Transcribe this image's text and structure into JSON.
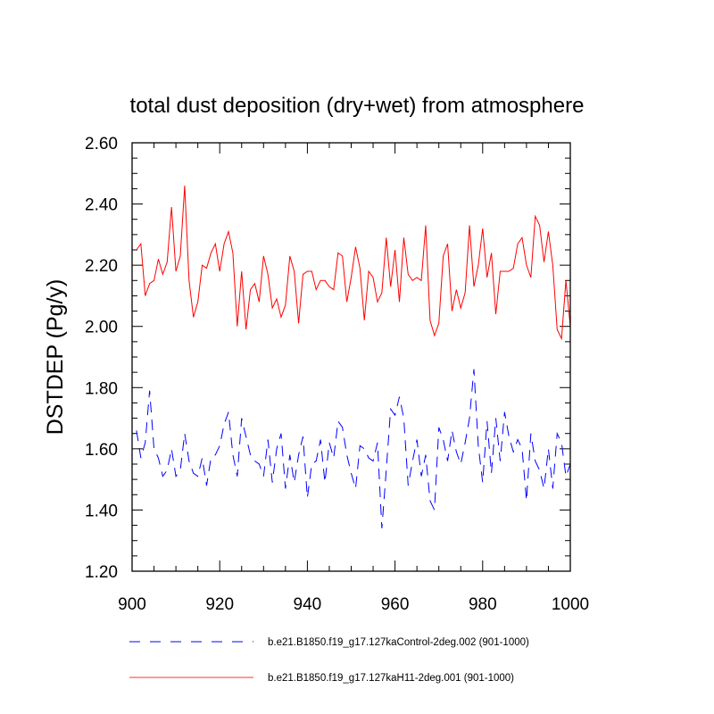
{
  "chart_data": {
    "type": "line",
    "title": "total dust deposition (dry+wet) from atmosphere",
    "xlabel": "",
    "ylabel": "DSTDEP  (Pg/y)",
    "xlim": [
      900,
      1000
    ],
    "ylim": [
      1.2,
      2.6
    ],
    "xticks": [
      900,
      920,
      940,
      960,
      980,
      1000
    ],
    "xtick_labels": [
      "900",
      "920",
      "940",
      "960",
      "980",
      "1000"
    ],
    "yticks": [
      1.2,
      1.4,
      1.6,
      1.8,
      2.0,
      2.2,
      2.4,
      2.6
    ],
    "ytick_labels": [
      "1.20",
      "1.40",
      "1.60",
      "1.80",
      "2.00",
      "2.20",
      "2.40",
      "2.60"
    ],
    "x": [
      901,
      902,
      903,
      904,
      905,
      906,
      907,
      908,
      909,
      910,
      911,
      912,
      913,
      914,
      915,
      916,
      917,
      918,
      919,
      920,
      921,
      922,
      923,
      924,
      925,
      926,
      927,
      928,
      929,
      930,
      931,
      932,
      933,
      934,
      935,
      936,
      937,
      938,
      939,
      940,
      941,
      942,
      943,
      944,
      945,
      946,
      947,
      948,
      949,
      950,
      951,
      952,
      953,
      954,
      955,
      956,
      957,
      958,
      959,
      960,
      961,
      962,
      963,
      964,
      965,
      966,
      967,
      968,
      969,
      970,
      971,
      972,
      973,
      974,
      975,
      976,
      977,
      978,
      979,
      980,
      981,
      982,
      983,
      984,
      985,
      986,
      987,
      988,
      989,
      990,
      991,
      992,
      993,
      994,
      995,
      996,
      997,
      998,
      999,
      1000
    ],
    "series": [
      {
        "name": "b.e21.B1850.f19_g17.127kaControl-2deg.002 (901-1000)",
        "color": "#0000ff",
        "style": "dashed",
        "values": [
          1.66,
          1.57,
          1.62,
          1.79,
          1.6,
          1.57,
          1.51,
          1.53,
          1.6,
          1.51,
          1.53,
          1.65,
          1.56,
          1.52,
          1.51,
          1.57,
          1.48,
          1.57,
          1.58,
          1.61,
          1.68,
          1.72,
          1.58,
          1.51,
          1.7,
          1.64,
          1.58,
          1.56,
          1.55,
          1.51,
          1.63,
          1.49,
          1.6,
          1.65,
          1.47,
          1.58,
          1.49,
          1.58,
          1.64,
          1.44,
          1.55,
          1.56,
          1.63,
          1.49,
          1.62,
          1.57,
          1.69,
          1.67,
          1.58,
          1.52,
          1.47,
          1.61,
          1.6,
          1.57,
          1.56,
          1.62,
          1.34,
          1.53,
          1.73,
          1.71,
          1.77,
          1.7,
          1.48,
          1.56,
          1.63,
          1.51,
          1.58,
          1.43,
          1.4,
          1.67,
          1.63,
          1.56,
          1.66,
          1.59,
          1.55,
          1.62,
          1.7,
          1.86,
          1.61,
          1.49,
          1.69,
          1.52,
          1.7,
          1.56,
          1.72,
          1.64,
          1.59,
          1.63,
          1.6,
          1.43,
          1.65,
          1.56,
          1.53,
          1.47,
          1.6,
          1.47,
          1.65,
          1.62,
          1.51,
          1.55
        ]
      },
      {
        "name": "b.e21.B1850.f19_g17.127kaH11-2deg.001 (901-1000)",
        "color": "#ff0000",
        "style": "solid",
        "values": [
          2.25,
          2.27,
          2.1,
          2.14,
          2.15,
          2.22,
          2.17,
          2.21,
          2.39,
          2.18,
          2.23,
          2.46,
          2.15,
          2.03,
          2.08,
          2.2,
          2.19,
          2.24,
          2.27,
          2.18,
          2.27,
          2.31,
          2.24,
          2.0,
          2.18,
          1.99,
          2.12,
          2.14,
          2.08,
          2.23,
          2.17,
          2.06,
          2.09,
          2.03,
          2.07,
          2.23,
          2.18,
          2.01,
          2.17,
          2.18,
          2.18,
          2.12,
          2.15,
          2.15,
          2.13,
          2.12,
          2.24,
          2.23,
          2.08,
          2.16,
          2.26,
          2.19,
          2.02,
          2.18,
          2.16,
          2.08,
          2.11,
          2.29,
          2.13,
          2.25,
          2.08,
          2.29,
          2.17,
          2.15,
          2.16,
          2.15,
          2.33,
          2.02,
          1.97,
          2.01,
          2.23,
          2.27,
          2.05,
          2.12,
          2.06,
          2.11,
          2.33,
          2.13,
          2.2,
          2.32,
          2.16,
          2.24,
          2.04,
          2.18,
          2.18,
          2.18,
          2.19,
          2.27,
          2.29,
          2.2,
          2.16,
          2.36,
          2.33,
          2.21,
          2.31,
          2.2,
          1.99,
          1.96,
          2.15,
          2.0
        ]
      }
    ]
  }
}
